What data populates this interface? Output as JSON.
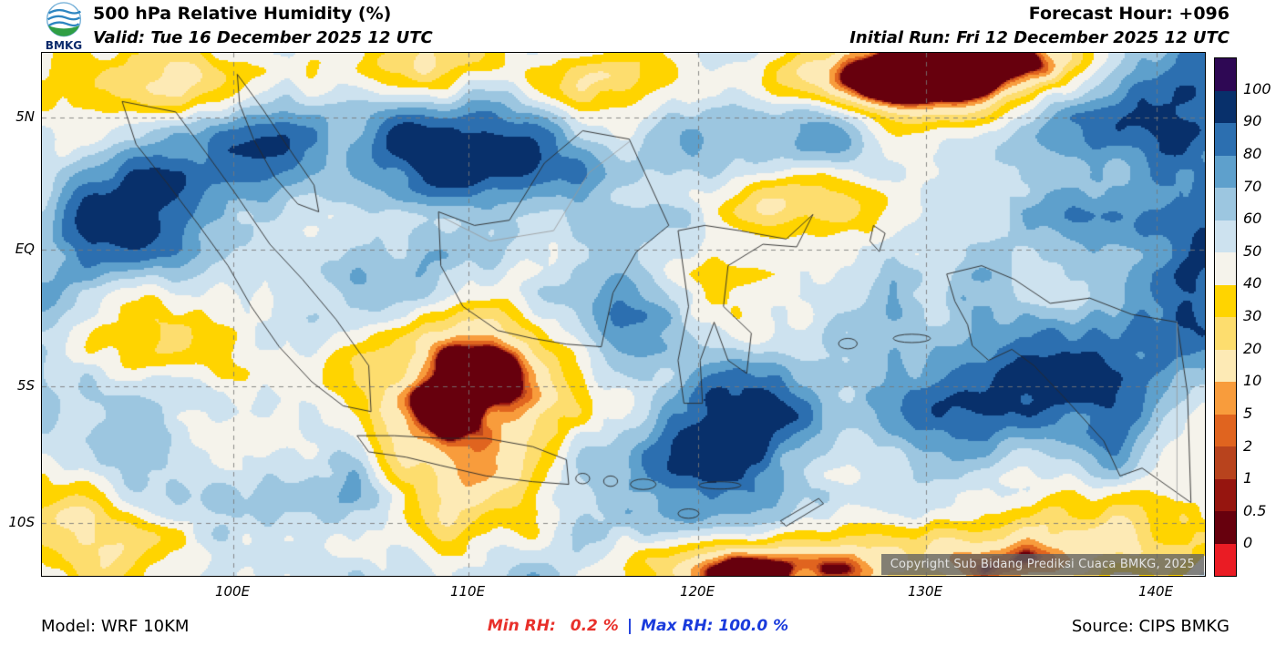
{
  "header": {
    "logo_label": "BMKG",
    "title": "500 hPa Relative Humidity (%)",
    "valid_line": "Valid: Tue 16 December 2025 12 UTC",
    "forecast_hour": "Forecast Hour: +096",
    "initial_run": "Initial Run: Fri 12 December 2025 12 UTC"
  },
  "map": {
    "lat_labels": [
      "5N",
      "EQ",
      "5S",
      "10S"
    ],
    "lon_labels": [
      "100E",
      "110E",
      "120E",
      "130E",
      "140E"
    ],
    "copyright": "Copyright Sub Bidang Prediksi Cuaca BMKG, 2025"
  },
  "colorbar": {
    "tick_labels": [
      "100",
      "90",
      "80",
      "70",
      "60",
      "50",
      "40",
      "30",
      "20",
      "10",
      "5",
      "2",
      "1",
      "0.5",
      "0"
    ],
    "segment_colors_top_to_bottom": [
      "#2e0854",
      "#08306b",
      "#2c6fb0",
      "#5ea0cc",
      "#9cc6e0",
      "#cde2ef",
      "#f5f3eb",
      "#ffd400",
      "#fddd6e",
      "#fdeab5",
      "#f89c3c",
      "#e0641f",
      "#b8431d",
      "#96150f",
      "#67000d",
      "#ea1c24"
    ],
    "thresholds_desc": [
      100,
      90,
      80,
      70,
      60,
      50,
      40,
      30,
      20,
      10,
      5,
      2,
      1,
      0.5,
      0
    ]
  },
  "footer": {
    "model": "Model: WRF 10KM",
    "min_label": "Min RH:",
    "min_value": "0.2 %",
    "divider": "|",
    "max_label": "Max RH:",
    "max_value": "100.0 %",
    "source": "Source: CIPS BMKG"
  },
  "colors": {
    "min_text": "#e8302a",
    "max_text": "#1a3bdc",
    "grid_line": "#787878",
    "coastline": "#2a2a2a"
  }
}
